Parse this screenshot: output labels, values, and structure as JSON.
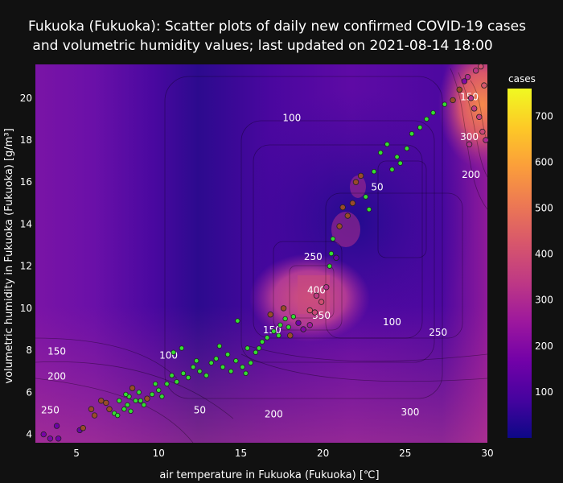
{
  "chart_data": {
    "type": "scatter",
    "title_line1": "Fukuoka (Fukuoka): Scatter plots of daily new confirmed COVID-19 cases",
    "title_line2": " and volumetric humidity values; last updated on 2021-08-14 18:00",
    "xlabel": "air temperature in Fukuoka (Fukuoka) [℃]",
    "ylabel": "volumetric humidity in Fukuoka (Fukuoka) [g/m³]",
    "xlim": [
      2.5,
      30
    ],
    "ylim": [
      3.6,
      21.6
    ],
    "x_ticks": [
      5,
      10,
      15,
      20,
      25,
      30
    ],
    "y_ticks": [
      4,
      6,
      8,
      10,
      12,
      14,
      16,
      18,
      20
    ],
    "colorbar": {
      "title": "cases",
      "range": [
        0,
        760
      ],
      "ticks": [
        100,
        200,
        300,
        400,
        500,
        600,
        700
      ],
      "colorscale": [
        "#0d0887",
        "#46039f",
        "#7201a8",
        "#9c179e",
        "#bd3786",
        "#d8576b",
        "#ed7953",
        "#fb9f3a",
        "#fdca26",
        "#f0f921"
      ]
    },
    "contour_labels": [
      {
        "text": "100",
        "x": 10.6,
        "y": 7.6
      },
      {
        "text": "150",
        "x": 3.8,
        "y": 7.8
      },
      {
        "text": "200",
        "x": 3.8,
        "y": 6.6
      },
      {
        "text": "250",
        "x": 3.4,
        "y": 5.0
      },
      {
        "text": "50",
        "x": 12.5,
        "y": 5.0
      },
      {
        "text": "200",
        "x": 17.0,
        "y": 4.8
      },
      {
        "text": "300",
        "x": 25.3,
        "y": 4.9
      },
      {
        "text": "150",
        "x": 16.9,
        "y": 8.8
      },
      {
        "text": "350",
        "x": 19.9,
        "y": 9.5
      },
      {
        "text": "400",
        "x": 19.6,
        "y": 10.7
      },
      {
        "text": "250",
        "x": 19.4,
        "y": 12.3
      },
      {
        "text": "100",
        "x": 18.1,
        "y": 18.9
      },
      {
        "text": "50",
        "x": 23.3,
        "y": 15.6
      },
      {
        "text": "200",
        "x": 29.0,
        "y": 16.2
      },
      {
        "text": "300",
        "x": 28.9,
        "y": 18.0
      },
      {
        "text": "150",
        "x": 28.9,
        "y": 19.9
      },
      {
        "text": "100",
        "x": 24.2,
        "y": 9.2
      },
      {
        "text": "250",
        "x": 27.0,
        "y": 8.7
      }
    ],
    "points": [
      [
        3.0,
        4.0,
        180
      ],
      [
        3.4,
        3.8,
        190
      ],
      [
        3.9,
        3.8,
        170
      ],
      [
        3.8,
        4.4,
        160
      ],
      [
        5.2,
        4.2,
        150
      ],
      [
        5.4,
        4.3,
        140
      ],
      [
        6.1,
        4.9,
        120
      ],
      [
        5.9,
        5.2,
        130
      ],
      [
        6.5,
        5.6,
        110
      ],
      [
        6.8,
        5.5,
        90
      ],
      [
        7.0,
        5.2,
        60
      ],
      [
        7.3,
        5.0,
        30
      ],
      [
        7.5,
        4.9,
        20
      ],
      [
        7.9,
        5.2,
        25
      ],
      [
        8.1,
        5.4,
        15
      ],
      [
        8.3,
        5.1,
        20
      ],
      [
        8.6,
        5.6,
        10
      ],
      [
        8.9,
        5.6,
        15
      ],
      [
        9.1,
        5.4,
        20
      ],
      [
        8.2,
        5.8,
        40
      ],
      [
        8.4,
        6.2,
        70
      ],
      [
        8.8,
        6.0,
        35
      ],
      [
        9.3,
        5.7,
        60
      ],
      [
        9.6,
        5.9,
        25
      ],
      [
        10.0,
        6.1,
        20
      ],
      [
        10.2,
        5.8,
        30
      ],
      [
        10.5,
        6.4,
        15
      ],
      [
        10.8,
        6.8,
        20
      ],
      [
        11.1,
        6.5,
        10
      ],
      [
        11.5,
        6.9,
        15
      ],
      [
        11.8,
        6.7,
        20
      ],
      [
        12.1,
        7.2,
        10
      ],
      [
        12.5,
        7.0,
        15
      ],
      [
        12.9,
        6.8,
        20
      ],
      [
        13.2,
        7.4,
        10
      ],
      [
        13.5,
        7.6,
        20
      ],
      [
        13.9,
        7.2,
        15
      ],
      [
        14.2,
        7.8,
        10
      ],
      [
        14.4,
        7.0,
        20
      ],
      [
        14.7,
        7.5,
        15
      ],
      [
        15.1,
        7.2,
        20
      ],
      [
        15.3,
        6.9,
        30
      ],
      [
        15.6,
        7.4,
        25
      ],
      [
        15.9,
        7.9,
        10
      ],
      [
        16.1,
        8.1,
        20
      ],
      [
        16.3,
        8.4,
        15
      ],
      [
        16.6,
        8.6,
        25
      ],
      [
        17.0,
        8.9,
        15
      ],
      [
        17.3,
        8.7,
        20
      ],
      [
        17.4,
        9.2,
        25
      ],
      [
        17.7,
        9.5,
        30
      ],
      [
        17.9,
        9.1,
        15
      ],
      [
        18.2,
        9.6,
        20
      ],
      [
        18.0,
        8.7,
        80
      ],
      [
        18.5,
        9.3,
        160
      ],
      [
        18.8,
        9.0,
        200
      ],
      [
        19.2,
        9.2,
        260
      ],
      [
        19.5,
        9.8,
        380
      ],
      [
        19.9,
        10.3,
        400
      ],
      [
        19.2,
        9.9,
        420
      ],
      [
        20.2,
        11.0,
        320
      ],
      [
        20.4,
        12.0,
        40
      ],
      [
        20.5,
        12.6,
        20
      ],
      [
        20.6,
        13.3,
        30
      ],
      [
        21.0,
        13.9,
        60
      ],
      [
        21.5,
        14.4,
        80
      ],
      [
        21.8,
        15.0,
        90
      ],
      [
        22.0,
        16.0,
        110
      ],
      [
        22.3,
        16.3,
        120
      ],
      [
        22.6,
        15.3,
        20
      ],
      [
        22.8,
        14.7,
        15
      ],
      [
        23.1,
        16.5,
        20
      ],
      [
        23.5,
        17.4,
        25
      ],
      [
        23.9,
        17.8,
        15
      ],
      [
        24.2,
        16.6,
        20
      ],
      [
        24.5,
        17.2,
        25
      ],
      [
        24.7,
        16.9,
        20
      ],
      [
        25.1,
        17.6,
        15
      ],
      [
        25.4,
        18.3,
        30
      ],
      [
        25.9,
        18.6,
        35
      ],
      [
        26.3,
        19.0,
        40
      ],
      [
        26.7,
        19.3,
        30
      ],
      [
        27.4,
        19.7,
        40
      ],
      [
        27.9,
        19.9,
        60
      ],
      [
        28.3,
        20.4,
        80
      ],
      [
        28.6,
        20.8,
        200
      ],
      [
        28.8,
        21.0,
        300
      ],
      [
        29.0,
        20.0,
        320
      ],
      [
        29.2,
        19.5,
        350
      ],
      [
        29.5,
        19.1,
        360
      ],
      [
        29.7,
        18.4,
        380
      ],
      [
        29.9,
        18.0,
        300
      ],
      [
        28.9,
        17.8,
        320
      ],
      [
        29.3,
        21.3,
        340
      ],
      [
        29.6,
        21.5,
        400
      ],
      [
        29.8,
        20.6,
        420
      ],
      [
        7.6,
        5.6,
        20
      ],
      [
        8.0,
        5.9,
        15
      ],
      [
        9.8,
        6.4,
        30
      ],
      [
        10.9,
        7.9,
        25
      ],
      [
        11.4,
        8.1,
        45
      ],
      [
        12.3,
        7.5,
        30
      ],
      [
        13.7,
        8.2,
        20
      ],
      [
        14.8,
        9.4,
        30
      ],
      [
        15.4,
        8.1,
        40
      ],
      [
        16.8,
        9.7,
        50
      ],
      [
        17.6,
        10.0,
        60
      ],
      [
        19.6,
        10.6,
        350
      ],
      [
        20.8,
        12.4,
        150
      ],
      [
        21.2,
        14.8,
        100
      ]
    ]
  }
}
